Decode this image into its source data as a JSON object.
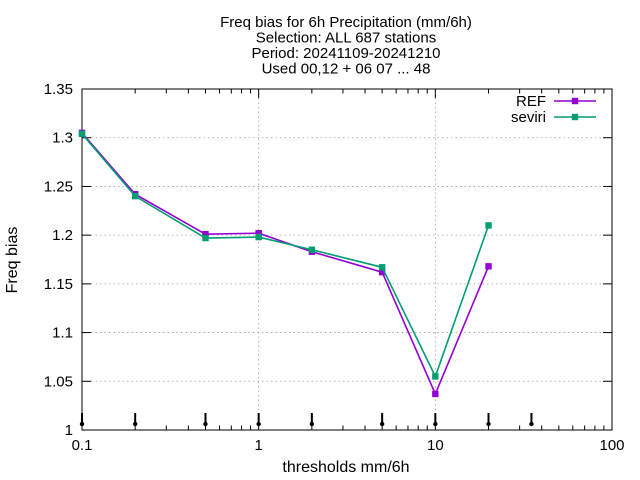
{
  "chart_data": {
    "type": "line",
    "title_lines": [
      "Freq bias  for 6h Precipitation (mm/6h)",
      "Selection: ALL    687 stations",
      "Period: 20241109-20241210",
      "Used 00,12 + 06 07 ... 48"
    ],
    "xlabel": "thresholds mm/6h",
    "ylabel": "Freq bias",
    "x_scale": "log",
    "xlim": [
      0.1,
      100
    ],
    "ylim": [
      1.0,
      1.35
    ],
    "x_ticks": [
      {
        "value": 0.1,
        "label": "0.1"
      },
      {
        "value": 1,
        "label": "1"
      },
      {
        "value": 10,
        "label": "10"
      },
      {
        "value": 100,
        "label": "100"
      }
    ],
    "y_ticks": [
      {
        "value": 1.0,
        "label": "1"
      },
      {
        "value": 1.05,
        "label": "1.05"
      },
      {
        "value": 1.1,
        "label": "1.1"
      },
      {
        "value": 1.15,
        "label": "1.15"
      },
      {
        "value": 1.2,
        "label": "1.2"
      },
      {
        "value": 1.25,
        "label": "1.25"
      },
      {
        "value": 1.3,
        "label": "1.3"
      },
      {
        "value": 1.35,
        "label": "1.35"
      }
    ],
    "grid": true,
    "legend_position": "top-right",
    "threshold_markers_x": [
      0.1,
      0.2,
      0.5,
      1,
      2,
      5,
      10,
      20,
      35
    ],
    "series": [
      {
        "name": "REF",
        "color": "#9400d3",
        "x": [
          0.1,
          0.2,
          0.5,
          1,
          2,
          5,
          10,
          20
        ],
        "y": [
          1.305,
          1.242,
          1.201,
          1.202,
          1.183,
          1.162,
          1.037,
          1.168
        ]
      },
      {
        "name": "seviri",
        "color": "#009e73",
        "x": [
          0.1,
          0.2,
          0.5,
          1,
          2,
          5,
          10,
          20
        ],
        "y": [
          1.304,
          1.24,
          1.197,
          1.198,
          1.185,
          1.167,
          1.055,
          1.21
        ]
      }
    ]
  }
}
